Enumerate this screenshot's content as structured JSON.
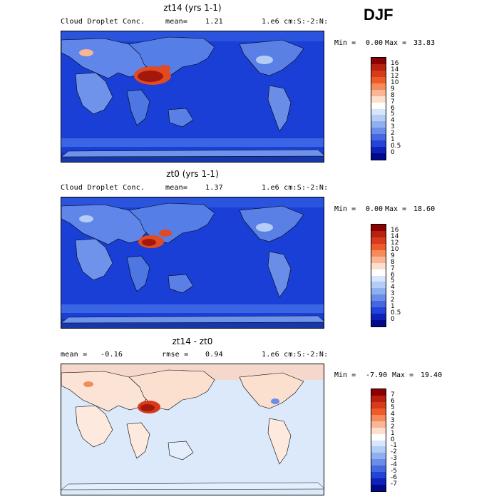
{
  "season": "DJF",
  "panels": [
    {
      "title": "zt14 (yrs 1-1)",
      "left_label": "Cloud Droplet Conc.",
      "mean_label": "mean=",
      "mean_value": "1.21",
      "units": "1.e6 cm:S:-2:N:",
      "min_label": "Min =",
      "min_value": "0.00",
      "max_label": "Max =",
      "max_value": "33.83",
      "colorbar_labels": [
        "16",
        "14",
        "12",
        "10",
        "9",
        "8",
        "7",
        "6",
        "5",
        "4",
        "3",
        "2",
        "1",
        "0.5",
        "0"
      ],
      "colorbar_colors": [
        "#8b0000",
        "#b8200f",
        "#d83a1c",
        "#ee5a2a",
        "#f58a5a",
        "#fab596",
        "#fde0cc",
        "#ffffff",
        "#d6e6ff",
        "#b3cdf7",
        "#8fb0f0",
        "#6a8ee8",
        "#4667e0",
        "#2344d9",
        "#1021b8",
        "#000a8a"
      ]
    },
    {
      "title": "zt0 (yrs 1-1)",
      "left_label": "Cloud Droplet Conc.",
      "mean_label": "mean=",
      "mean_value": "1.37",
      "units": "1.e6 cm:S:-2:N:",
      "min_label": "Min =",
      "min_value": "0.00",
      "max_label": "Max =",
      "max_value": "18.60",
      "colorbar_labels": [
        "16",
        "14",
        "12",
        "10",
        "9",
        "8",
        "7",
        "6",
        "5",
        "4",
        "3",
        "2",
        "1",
        "0.5",
        "0"
      ],
      "colorbar_colors": [
        "#8b0000",
        "#b8200f",
        "#d83a1c",
        "#ee5a2a",
        "#f58a5a",
        "#fab596",
        "#fde0cc",
        "#ffffff",
        "#d6e6ff",
        "#b3cdf7",
        "#8fb0f0",
        "#6a8ee8",
        "#4667e0",
        "#2344d9",
        "#1021b8",
        "#000a8a"
      ]
    },
    {
      "title": "zt14 - zt0",
      "left_label": "mean =",
      "mean_label": "",
      "mean_value": "-0.16",
      "rmse_label": "rmse =",
      "rmse_value": "0.94",
      "units": "1.e6 cm:S:-2:N:",
      "min_label": "Min =",
      "min_value": "-7.90",
      "max_label": "Max =",
      "max_value": "19.40",
      "colorbar_labels": [
        "7",
        "6",
        "5",
        "4",
        "3",
        "2",
        "1",
        "0",
        "-1",
        "-2",
        "-3",
        "-4",
        "-5",
        "-6",
        "-7"
      ],
      "colorbar_colors": [
        "#8b0000",
        "#b8200f",
        "#d83a1c",
        "#ee5a2a",
        "#f58a5a",
        "#fab596",
        "#fde0cc",
        "#ffffff",
        "#d6e6ff",
        "#b3cdf7",
        "#8fb0f0",
        "#6a8ee8",
        "#4667e0",
        "#2344d9",
        "#1021b8",
        "#000a8a"
      ]
    }
  ],
  "colors": {
    "ocean_dark": "#1a3fd6",
    "ocean_mid": "#2f5ce0",
    "land_light": "#6f93ea",
    "hot_dark": "#a3180c",
    "hot_mid": "#e24a22",
    "diff_bg": "#dbe9fb",
    "diff_pos": "#fbd3bf"
  }
}
